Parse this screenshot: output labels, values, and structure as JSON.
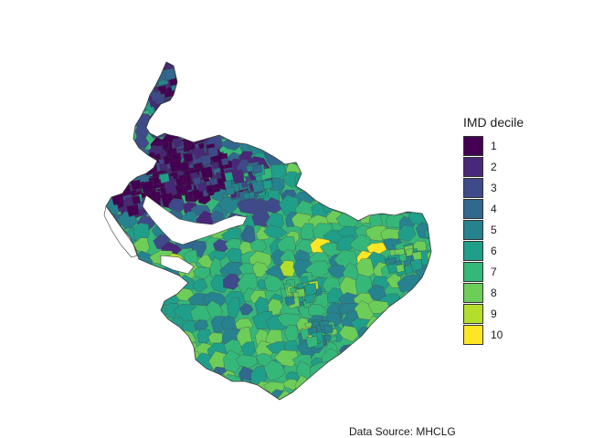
{
  "legend": {
    "title": "IMD decile",
    "items": [
      {
        "label": "1",
        "color": "#440154"
      },
      {
        "label": "2",
        "color": "#482878"
      },
      {
        "label": "3",
        "color": "#3E4A89"
      },
      {
        "label": "4",
        "color": "#31688E"
      },
      {
        "label": "5",
        "color": "#26828E"
      },
      {
        "label": "6",
        "color": "#1F9E89"
      },
      {
        "label": "7",
        "color": "#35B779"
      },
      {
        "label": "8",
        "color": "#6DCD59"
      },
      {
        "label": "9",
        "color": "#B4DE2C"
      },
      {
        "label": "10",
        "color": "#FDE725"
      }
    ]
  },
  "caption": "Data Source: MHCLG",
  "map": {
    "region_outline_color": "#3a3a3a",
    "estuary_color": "#ffffff"
  }
}
